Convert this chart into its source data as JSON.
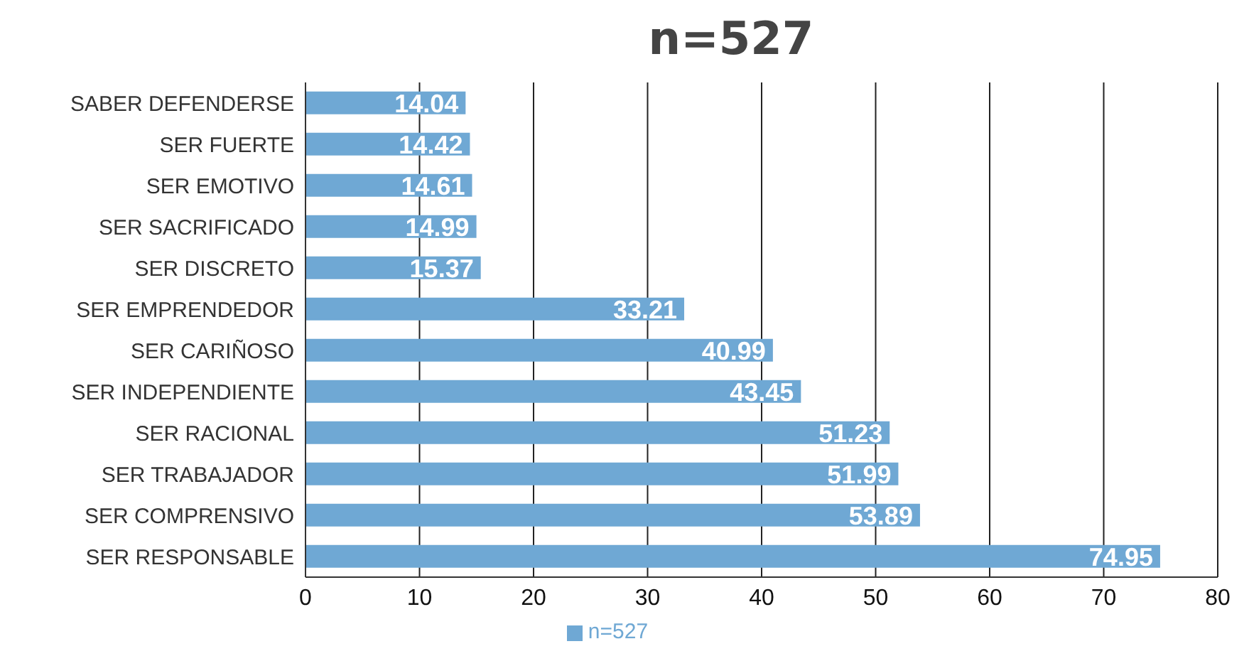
{
  "chart_data": {
    "type": "bar",
    "orientation": "horizontal",
    "title": "n=527",
    "categories": [
      "SABER DEFENDERSE",
      "SER FUERTE",
      "SER EMOTIVO",
      "SER SACRIFICADO",
      "SER DISCRETO",
      "SER EMPRENDEDOR",
      "SER CARIÑOSO",
      "SER INDEPENDIENTE",
      "SER RACIONAL",
      "SER TRABAJADOR",
      "SER COMPRENSIVO",
      "SER RESPONSABLE"
    ],
    "series": [
      {
        "name": "n=527",
        "color": "#6fa8d4",
        "values": [
          14.04,
          14.42,
          14.61,
          14.99,
          15.37,
          33.21,
          40.99,
          43.45,
          51.23,
          51.99,
          53.89,
          74.95
        ]
      }
    ],
    "xlim": [
      0,
      80
    ],
    "xticks": [
      0,
      10,
      20,
      30,
      40,
      50,
      60,
      70,
      80
    ],
    "grid": "x",
    "legend": "bottom",
    "data_labels": true
  }
}
